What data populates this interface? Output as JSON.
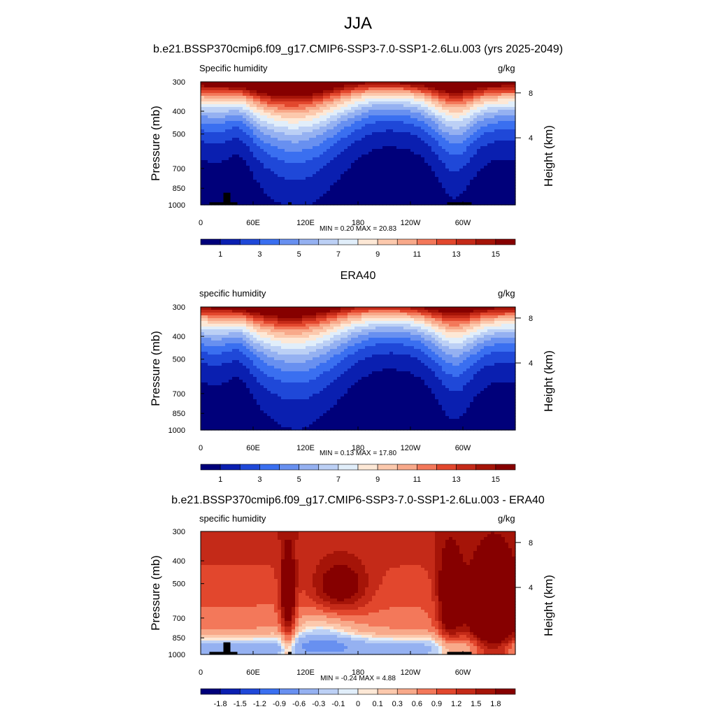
{
  "figure": {
    "title": "JJA",
    "panel1_title": "b.e21.BSSP370cmip6.f09_g17.CMIP6-SSP3-7.0-SSP1-2.6Lu.003 (yrs 2025-2049)",
    "panel2_title": "ERA40",
    "panel3_title": "b.e21.BSSP370cmip6.f09_g17.CMIP6-SSP3-7.0-SSP1-2.6Lu.003 - ERA40"
  },
  "chart_data": [
    {
      "type": "heatmap",
      "variable": "Specific humidity",
      "units": "g/kg",
      "ylabel": "Pressure (mb)",
      "y2label": "Height (km)",
      "xticks": [
        "0",
        "60E",
        "120E",
        "180",
        "120W",
        "60W"
      ],
      "yticks": [
        "300",
        "400",
        "500",
        "700",
        "850",
        "1000"
      ],
      "y2ticks": [
        "8",
        "4"
      ],
      "stats": "MIN =   0.20  MAX =  20.83",
      "min": 0.2,
      "max": 20.83,
      "colorbar_labels": [
        "1",
        "3",
        "5",
        "7",
        "9",
        "11",
        "13",
        "15"
      ],
      "colorbar_levels": 16
    },
    {
      "type": "heatmap",
      "variable": "specific humidity",
      "units": "g/kg",
      "ylabel": "Pressure (mb)",
      "y2label": "Height (km)",
      "xticks": [
        "0",
        "60E",
        "120E",
        "180",
        "120W",
        "60W"
      ],
      "yticks": [
        "300",
        "400",
        "500",
        "700",
        "850",
        "1000"
      ],
      "y2ticks": [
        "8",
        "4"
      ],
      "stats": "MIN =   0.13  MAX =  17.80",
      "min": 0.13,
      "max": 17.8,
      "colorbar_labels": [
        "1",
        "3",
        "5",
        "7",
        "9",
        "11",
        "13",
        "15"
      ],
      "colorbar_levels": 16
    },
    {
      "type": "heatmap",
      "variable": "specific humidity",
      "units": "g/kg",
      "ylabel": "Pressure (mb)",
      "y2label": "Height (km)",
      "xticks": [
        "0",
        "60E",
        "120E",
        "180",
        "120W",
        "60W"
      ],
      "yticks": [
        "300",
        "400",
        "500",
        "700",
        "850",
        "1000"
      ],
      "y2ticks": [
        "8",
        "4"
      ],
      "stats": "MIN =  -0.24  MAX =   4.88",
      "min": -0.24,
      "max": 4.88,
      "colorbar_labels": [
        "-1.8",
        "-1.5",
        "-1.2",
        "-0.9",
        "-0.6",
        "-0.3",
        "-0.1",
        "0",
        "0.1",
        "0.3",
        "0.6",
        "0.9",
        "1.2",
        "1.5",
        "1.8"
      ],
      "colorbar_levels": 16
    }
  ],
  "palette": [
    "#00007a",
    "#0a1fb0",
    "#1f48d8",
    "#3a6ff0",
    "#6890f0",
    "#95b1f1",
    "#bcd0f5",
    "#e1eefa",
    "#fde8d6",
    "#fcc9ad",
    "#f8a98a",
    "#f3785a",
    "#e2472d",
    "#c42a18",
    "#a51408",
    "#860000"
  ]
}
